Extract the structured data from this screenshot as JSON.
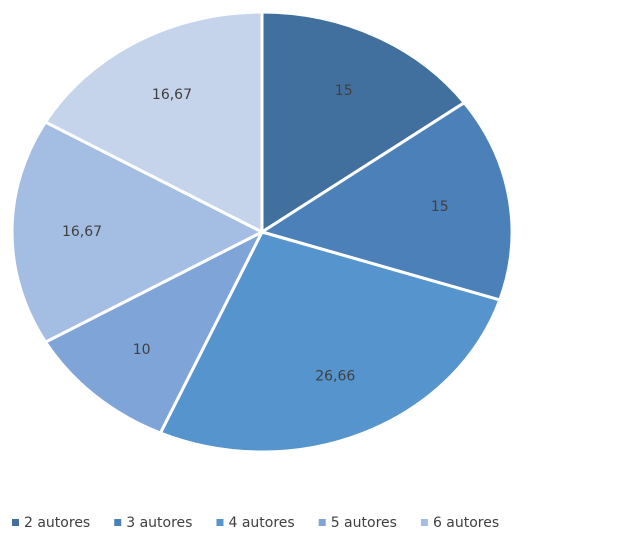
{
  "chart_data": {
    "type": "pie",
    "categories": [
      "2 autores",
      "3 autores",
      "4 autores",
      "5 autores",
      "6 autores",
      null
    ],
    "values": [
      15,
      15,
      26.66,
      10,
      16.67,
      16.67
    ],
    "value_labels": [
      "15",
      "15",
      "26,66",
      "10",
      "16,67",
      "16,67"
    ],
    "colors": [
      "#41709e",
      "#4b80b8",
      "#5594cc",
      "#7fa4d8",
      "#a4bee3",
      "#c6d4eb"
    ]
  }
}
